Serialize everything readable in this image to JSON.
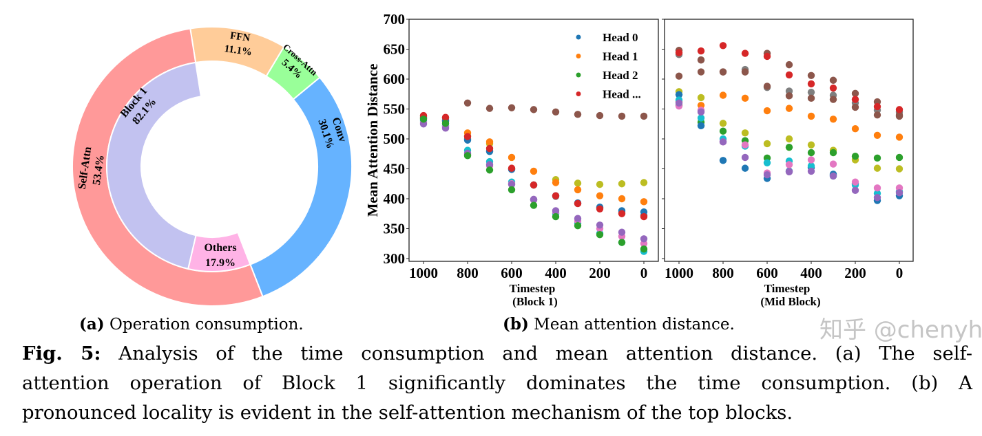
{
  "chart_data": [
    {
      "type": "pie",
      "variant": "nested-donut",
      "outer_ring": [
        {
          "label": "FFN",
          "value": 11.1,
          "text": "11.1%",
          "color": "#ffcc99"
        },
        {
          "label": "Cross-Attn",
          "value": 5.4,
          "text": "5.4%",
          "color": "#99ff99"
        },
        {
          "label": "Conv",
          "value": 30.1,
          "text": "30.1%",
          "color": "#66b3ff"
        },
        {
          "label": "Self-Attn",
          "value": 53.4,
          "text": "53.4%",
          "color": "#ff9999"
        }
      ],
      "inner_ring_parent": "Self-Attn",
      "inner_ring": [
        {
          "label": "Others",
          "value": 17.9,
          "text": "17.9%",
          "color": "#ffb3e6"
        },
        {
          "label": "Block 1",
          "value": 82.1,
          "text": "82.1%",
          "color": "#c2c2f0"
        }
      ],
      "subcaption_tag": "(a)",
      "subcaption": "Operation consumption."
    },
    {
      "type": "scatter",
      "ylabel": "Mean Attention Distance",
      "ylim": [
        300,
        700
      ],
      "yticks": [
        "700",
        "650",
        "600",
        "550",
        "500",
        "450",
        "400",
        "350",
        "300"
      ],
      "xticks": [
        "1000",
        "800",
        "600",
        "400",
        "200",
        "0"
      ],
      "x": [
        1000,
        900,
        800,
        700,
        600,
        500,
        400,
        300,
        200,
        100,
        0
      ],
      "legend": {
        "placement": "top-right",
        "entries": [
          {
            "label": "Head 0",
            "color": "#1f77b4"
          },
          {
            "label": "Head 1",
            "color": "#ff7f0e"
          },
          {
            "label": "Head 2",
            "color": "#2ca02c"
          },
          {
            "label": "Head ...",
            "color": "#d62728"
          }
        ]
      },
      "subcaption_tag": "(b)",
      "subcaption": "Mean attention distance.",
      "panels": [
        {
          "xlabel": "Timestep",
          "xlabel2": "(Block 1)",
          "series": [
            {
              "color": "#8c564b",
              "values": [
                538,
                535,
                560,
                551,
                552,
                549,
                545,
                541,
                539,
                538,
                538
              ]
            },
            {
              "color": "#7f7f7f",
              "values": [
                535,
                532,
                500,
                480,
                450,
                423,
                404,
                392,
                385,
                378,
                372
              ]
            },
            {
              "color": "#bcbd22",
              "values": [
                535,
                530,
                505,
                492,
                450,
                423,
                432,
                426,
                424,
                425,
                427
              ]
            },
            {
              "color": "#ff7f0e",
              "values": [
                535,
                530,
                510,
                495,
                469,
                446,
                427,
                415,
                405,
                400,
                395
              ]
            },
            {
              "color": "#1f77b4",
              "values": [
                535,
                530,
                498,
                479,
                449,
                423,
                405,
                393,
                386,
                380,
                378
              ]
            },
            {
              "color": "#d62728",
              "values": [
                539,
                536,
                504,
                484,
                451,
                423,
                405,
                392,
                383,
                375,
                370
              ]
            },
            {
              "color": "#17becf",
              "values": [
                530,
                522,
                481,
                462,
                428,
                398,
                375,
                359,
                342,
                327,
                312
              ]
            },
            {
              "color": "#e377c2",
              "values": [
                527,
                520,
                474,
                455,
                425,
                398,
                378,
                363,
                350,
                337,
                325
              ]
            },
            {
              "color": "#9467bd",
              "values": [
                525,
                518,
                476,
                457,
                424,
                399,
                380,
                367,
                356,
                344,
                333
              ]
            },
            {
              "color": "#2ca02c",
              "values": [
                533,
                526,
                472,
                448,
                415,
                389,
                370,
                355,
                340,
                327,
                316
              ]
            }
          ]
        },
        {
          "xlabel": "Timestep",
          "xlabel2": "(Mid Block)",
          "series": [
            {
              "color": "#7f7f7f",
              "values": [
                641,
                632,
                612,
                616,
                586,
                580,
                578,
                573,
                560,
                548,
                545
              ]
            },
            {
              "color": "#8c564b",
              "values": [
                648,
                632,
                612,
                612,
                643,
                624,
                606,
                598,
                576,
                562,
                538
              ]
            },
            {
              "color": "#8c564b",
              "values": [
                605,
                612,
                612,
                612,
                588,
                572,
                568,
                566,
                553,
                540,
                540
              ]
            },
            {
              "color": "#d62728",
              "values": [
                644,
                647,
                656,
                643,
                638,
                607,
                592,
                585,
                566,
                554,
                549
              ]
            },
            {
              "color": "#ff7f0e",
              "values": [
                562,
                556,
                573,
                568,
                547,
                551,
                538,
                533,
                517,
                506,
                503
              ]
            },
            {
              "color": "#bcbd22",
              "values": [
                579,
                569,
                526,
                510,
                492,
                500,
                490,
                481,
                465,
                451,
                450
              ]
            },
            {
              "color": "#2ca02c",
              "values": [
                556,
                528,
                513,
                497,
                468,
                486,
                477,
                477,
                471,
                468,
                469
              ]
            },
            {
              "color": "#1f77b4",
              "values": [
                574,
                522,
                464,
                451,
                434,
                446,
                452,
                441,
                425,
                397,
                405
              ]
            },
            {
              "color": "#17becf",
              "values": [
                565,
                535,
                500,
                488,
                460,
                463,
                455,
                438,
                423,
                409,
                412
              ]
            },
            {
              "color": "#e377c2",
              "values": [
                555,
                548,
                495,
                490,
                443,
                457,
                465,
                458,
                428,
                418,
                418
              ]
            },
            {
              "color": "#9467bd",
              "values": [
                560,
                545,
                495,
                469,
                440,
                445,
                446,
                438,
                414,
                402,
                410
              ]
            }
          ]
        }
      ]
    }
  ],
  "caption": {
    "label": "Fig. 5:",
    "line1": "Analysis of the time consumption and mean attention distance. (a) The self-",
    "line2": "attention operation of Block 1 significantly dominates the time consumption. (b) A",
    "line3": "pronounced locality is evident in the self-attention mechanism of the top blocks."
  },
  "watermark": "知乎 @chenyh"
}
